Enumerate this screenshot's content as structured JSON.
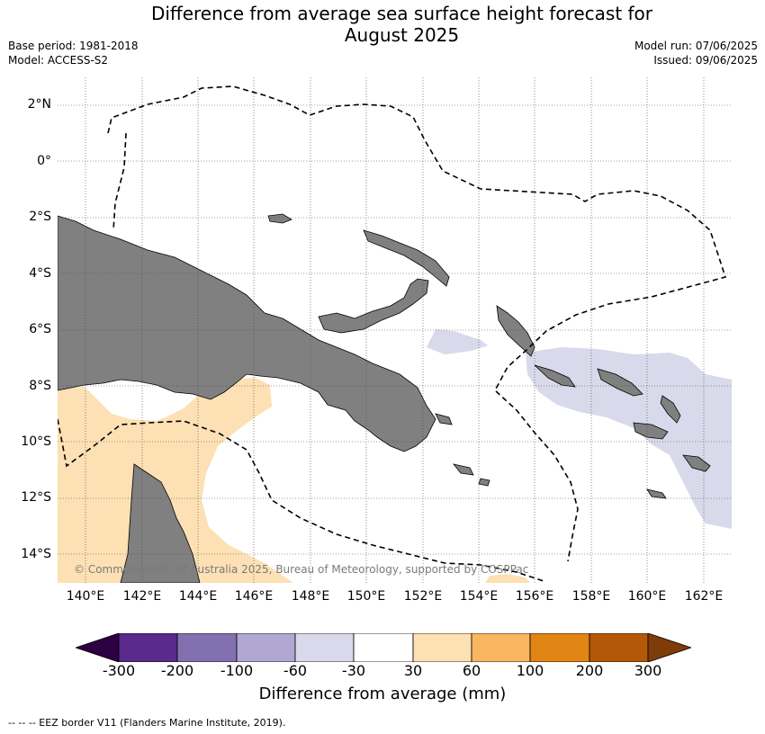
{
  "title": {
    "line1": "Difference from average sea surface height forecast for",
    "line2": "August 2025"
  },
  "meta": {
    "base_period": "Base period: 1981-2018",
    "model": "Model: ACCESS-S2",
    "model_run": "Model run: 07/06/2025",
    "issued": "Issued: 09/06/2025"
  },
  "axes": {
    "latitude_labels": [
      "2°N",
      "0°",
      "2°S",
      "4°S",
      "6°S",
      "8°S",
      "10°S",
      "12°S",
      "14°S"
    ],
    "longitude_labels": [
      "140°E",
      "142°E",
      "144°E",
      "146°E",
      "148°E",
      "150°E",
      "152°E",
      "154°E",
      "156°E",
      "158°E",
      "160°E",
      "162°E"
    ],
    "lat_range": [
      -15,
      3
    ],
    "lon_range": [
      139,
      163
    ],
    "gridlines": true
  },
  "map": {
    "ocean_color": "#ffffff",
    "land_color": "#808080",
    "eez_line": "dashed black"
  },
  "copyright": "© Commonwealth of Australia 2025, Bureau of Meteorology, supported by COSPPac",
  "colorbar": {
    "tick_labels": [
      "-300",
      "-200",
      "-100",
      "-60",
      "-30",
      "30",
      "60",
      "100",
      "200",
      "300"
    ],
    "colors": [
      "#2d0044",
      "#5a2a8c",
      "#8270b0",
      "#b0a8d2",
      "#d8d9ea",
      "#ffffff",
      "#fde0b3",
      "#f9b660",
      "#e08413",
      "#b35806",
      "#7f3b08"
    ],
    "title": "Difference from average (mm)"
  },
  "legend": {
    "eez_text": "--  --  -- EEZ border V11 (Flanders Marine Institute, 2019)."
  }
}
